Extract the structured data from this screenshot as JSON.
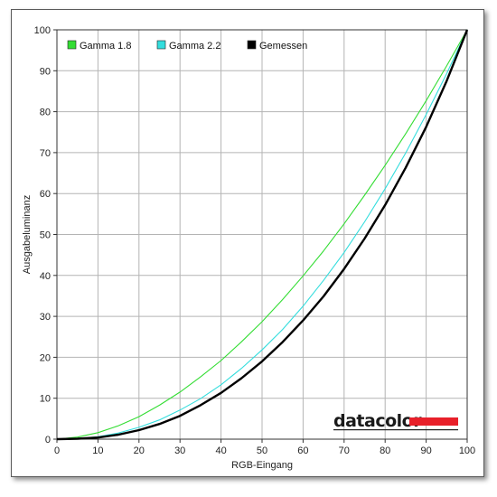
{
  "chart_data": {
    "type": "line",
    "title": "",
    "xlabel": "RGB-Eingang",
    "ylabel": "Ausgabeluminanz",
    "xlim": [
      0,
      100
    ],
    "ylim": [
      0,
      100
    ],
    "xticks": [
      0,
      10,
      20,
      30,
      40,
      50,
      60,
      70,
      80,
      90,
      100
    ],
    "yticks": [
      0,
      10,
      20,
      30,
      40,
      50,
      60,
      70,
      80,
      90,
      100
    ],
    "grid": true,
    "legend_position": "top-left",
    "series": [
      {
        "name": "Gamma 1.8",
        "color": "#33dd33",
        "x": [
          0,
          5,
          10,
          15,
          20,
          25,
          30,
          35,
          40,
          45,
          50,
          55,
          60,
          65,
          70,
          75,
          80,
          85,
          90,
          95,
          100
        ],
        "y": [
          0,
          0.5,
          1.6,
          3.3,
          5.5,
          8.3,
          11.5,
          15.2,
          19.2,
          23.8,
          28.7,
          34.1,
          39.9,
          46.0,
          52.6,
          59.6,
          66.9,
          74.6,
          82.7,
          91.2,
          100
        ]
      },
      {
        "name": "Gamma 2.2",
        "color": "#33dddd",
        "x": [
          0,
          5,
          10,
          15,
          20,
          25,
          30,
          35,
          40,
          45,
          50,
          55,
          60,
          65,
          70,
          75,
          80,
          85,
          90,
          95,
          100
        ],
        "y": [
          0,
          0.1,
          0.6,
          1.5,
          2.9,
          4.7,
          7.1,
          9.9,
          13.3,
          17.3,
          21.8,
          26.8,
          32.5,
          38.8,
          45.6,
          53.1,
          61.2,
          69.9,
          79.3,
          89.3,
          100
        ]
      },
      {
        "name": "Gemessen",
        "color": "#000000",
        "x": [
          0,
          5,
          10,
          15,
          20,
          25,
          30,
          35,
          40,
          45,
          50,
          55,
          60,
          65,
          70,
          75,
          80,
          85,
          90,
          95,
          100
        ],
        "y": [
          0,
          0.1,
          0.4,
          1.1,
          2.2,
          3.7,
          5.7,
          8.3,
          11.3,
          14.9,
          19.0,
          23.7,
          29.0,
          34.9,
          41.6,
          49.0,
          57.2,
          66.3,
          76.3,
          87.5,
          100
        ]
      }
    ]
  },
  "branding": {
    "logo_text": "datacolor",
    "logo_bar_color": "#e8202a"
  }
}
